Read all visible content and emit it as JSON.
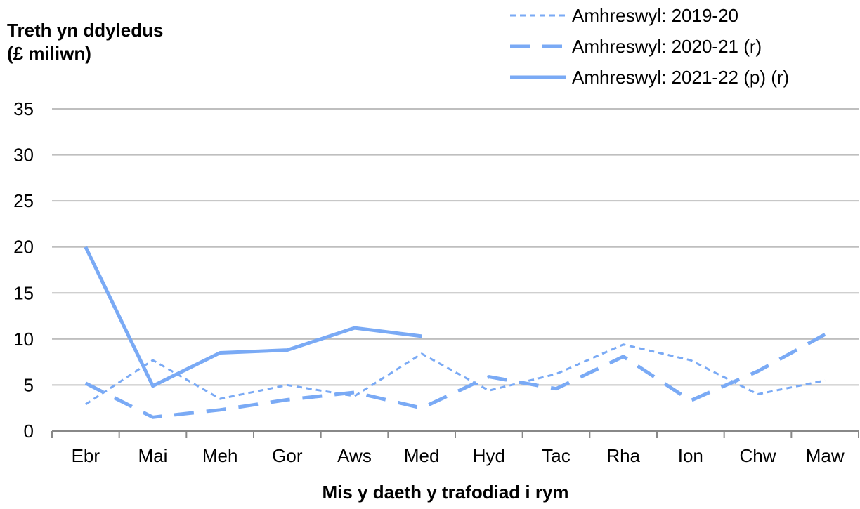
{
  "chart_data": {
    "type": "line",
    "ylabel_lines": [
      "Treth yn ddyledus",
      "(£ miliwn)"
    ],
    "xlabel": "Mis y daeth y trafodiad i rym",
    "categories": [
      "Ebr",
      "Mai",
      "Meh",
      "Gor",
      "Aws",
      "Med",
      "Hyd",
      "Tac",
      "Rha",
      "Ion",
      "Chw",
      "Maw"
    ],
    "ylim": [
      0,
      35
    ],
    "yticks": [
      0,
      5,
      10,
      15,
      20,
      25,
      30,
      35
    ],
    "grid": true,
    "legend_position": "top-right",
    "series": [
      {
        "name": "Amhreswyl: 2019-20",
        "style": "dotted",
        "values": [
          2.9,
          7.7,
          3.5,
          5.0,
          3.8,
          8.4,
          4.4,
          6.2,
          9.4,
          7.7,
          4.0,
          5.5
        ]
      },
      {
        "name": "Amhreswyl: 2020-21 (r)",
        "style": "dashed",
        "values": [
          5.2,
          1.5,
          2.3,
          3.4,
          4.2,
          2.5,
          5.9,
          4.6,
          8.1,
          3.3,
          6.5,
          10.5
        ]
      },
      {
        "name": "Amhreswyl: 2021-22 (p) (r)",
        "style": "solid",
        "values": [
          20.0,
          4.9,
          8.5,
          8.8,
          11.2,
          10.3,
          null,
          null,
          null,
          null,
          null,
          null
        ]
      }
    ],
    "colors": {
      "series": "#7aaaf5",
      "grid": "#bfbfbf",
      "axis": "#888888",
      "text": "#000000"
    }
  }
}
